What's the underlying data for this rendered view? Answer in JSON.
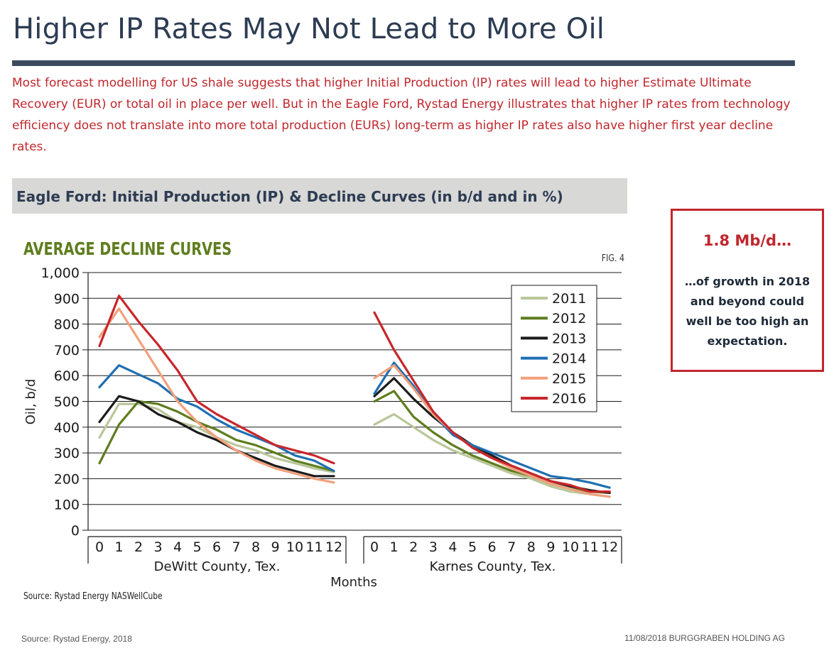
{
  "slide": {
    "title": "Higher IP Rates May Not Lead to More Oil",
    "intro": "Most forecast modelling for US shale suggests that higher Initial Production (IP) rates will lead to higher Estimate Ultimate Recovery (EUR) or total oil in place per well. But in the Eagle Ford, Rystad Energy illustrates that higher IP rates from technology efficiency does not translate into more total production (EURs) long-term as higher IP rates also have higher first year decline rates.",
    "chart_header": "Eagle Ford: Initial Production (IP) & Decline Curves (in b/d and in %)"
  },
  "callout": {
    "headline": "1.8 Mb/d…",
    "body": "…of growth in 2018 and beyond could well be too high an expectation."
  },
  "footer": {
    "source": "Source: Rystad Energy, 2018",
    "right": "11/08/2018  BURGGRABEN HOLDING AG"
  },
  "chart_data": {
    "type": "line",
    "title": "AVERAGE DECLINE CURVES",
    "fig_label": "FIG. 4",
    "ylabel": "Oil, b/d",
    "xlabel": "Months",
    "source": "Source: Rystad Energy NASWellCube",
    "ylim": [
      0,
      1000
    ],
    "yticks": [
      0,
      100,
      200,
      300,
      400,
      500,
      600,
      700,
      800,
      900,
      1000
    ],
    "ytick_labels": [
      "0",
      "100",
      "200",
      "300",
      "400",
      "500",
      "600",
      "700",
      "800",
      "900",
      "1,000"
    ],
    "x": [
      0,
      1,
      2,
      3,
      4,
      5,
      6,
      7,
      8,
      9,
      10,
      11,
      12
    ],
    "grid": true,
    "legend_position": "top-right",
    "legend": [
      {
        "name": "2011",
        "color": "#b9c79a"
      },
      {
        "name": "2012",
        "color": "#5e7d1e"
      },
      {
        "name": "2013",
        "color": "#1c1c1c"
      },
      {
        "name": "2014",
        "color": "#1f6fb2"
      },
      {
        "name": "2015",
        "color": "#f2a07c"
      },
      {
        "name": "2016",
        "color": "#c8262b"
      }
    ],
    "panels": [
      {
        "name": "DeWitt County, Tex.",
        "series": [
          {
            "name": "2011",
            "values": [
              360,
              490,
              490,
              470,
              420,
              400,
              360,
              330,
              310,
              280,
              260,
              240,
              225
            ]
          },
          {
            "name": "2012",
            "values": [
              260,
              410,
              500,
              490,
              460,
              420,
              390,
              350,
              330,
              300,
              270,
              250,
              230
            ]
          },
          {
            "name": "2013",
            "values": [
              420,
              520,
              500,
              450,
              420,
              380,
              350,
              310,
              280,
              250,
              230,
              210,
              210
            ]
          },
          {
            "name": "2014",
            "values": [
              555,
              640,
              605,
              570,
              510,
              480,
              430,
              390,
              360,
              330,
              290,
              270,
              230
            ]
          },
          {
            "name": "2015",
            "values": [
              750,
              860,
              740,
              620,
              500,
              420,
              360,
              310,
              270,
              240,
              220,
              200,
              185
            ]
          },
          {
            "name": "2016",
            "values": [
              715,
              910,
              810,
              720,
              620,
              500,
              450,
              410,
              370,
              330,
              310,
              290,
              260
            ]
          }
        ]
      },
      {
        "name": "Karnes County, Tex.",
        "series": [
          {
            "name": "2011",
            "values": [
              410,
              450,
              400,
              350,
              310,
              280,
              250,
              220,
              200,
              170,
              150,
              140,
              130
            ]
          },
          {
            "name": "2012",
            "values": [
              500,
              540,
              440,
              380,
              330,
              290,
              260,
              230,
              210,
              180,
              160,
              150,
              145
            ]
          },
          {
            "name": "2013",
            "values": [
              520,
              590,
              510,
              440,
              380,
              330,
              290,
              250,
              220,
              190,
              170,
              155,
              145
            ]
          },
          {
            "name": "2014",
            "values": [
              530,
              650,
              560,
              450,
              370,
              330,
              300,
              270,
              240,
              210,
              200,
              185,
              165
            ]
          },
          {
            "name": "2015",
            "values": [
              590,
              640,
              550,
              450,
              380,
              320,
              280,
              240,
              210,
              180,
              160,
              140,
              130
            ]
          },
          {
            "name": "2016",
            "values": [
              845,
              700,
              580,
              460,
              380,
              320,
              280,
              250,
              220,
              190,
              175,
              150,
              150
            ]
          }
        ]
      }
    ]
  }
}
